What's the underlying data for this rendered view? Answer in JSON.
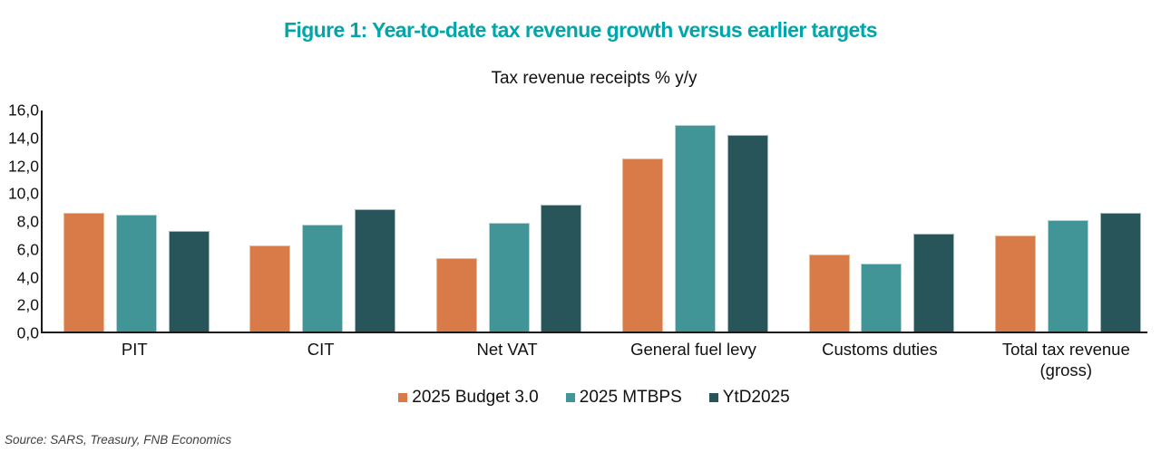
{
  "figure": {
    "title": "Figure 1: Year-to-date tax revenue growth versus earlier targets",
    "title_color": "#00A6A9",
    "source_note": "Source: SARS, Treasury, FNB Economics"
  },
  "chart_data": {
    "type": "bar",
    "title": "Tax revenue receipts % y/y",
    "xlabel": "",
    "ylabel": "",
    "ylim": [
      0,
      16
    ],
    "ytick_step": 2,
    "ytick_labels": [
      "0,0",
      "2,0",
      "4,0",
      "6,0",
      "8,0",
      "10,0",
      "12,0",
      "14,0",
      "16,0"
    ],
    "decimal_separator": ",",
    "grid": false,
    "legend_position": "bottom",
    "categories": [
      "PIT",
      "CIT",
      "Net VAT",
      "General fuel levy",
      "Customs duties",
      "Total tax revenue\n(gross)"
    ],
    "series": [
      {
        "name": "2025 Budget 3.0",
        "color": "#D87B48",
        "border_color": "#EDBA97",
        "values": [
          8.5,
          6.2,
          5.3,
          12.4,
          5.5,
          6.9
        ]
      },
      {
        "name": "2025 MTBPS",
        "color": "#429597",
        "border_color": "#B2D1D2",
        "values": [
          8.4,
          7.7,
          7.8,
          14.8,
          4.9,
          8.0
        ]
      },
      {
        "name": "YtD2025",
        "color": "#275559",
        "border_color": "#A2B9BB",
        "values": [
          7.2,
          8.8,
          9.1,
          14.1,
          7.0,
          8.5
        ]
      }
    ]
  }
}
